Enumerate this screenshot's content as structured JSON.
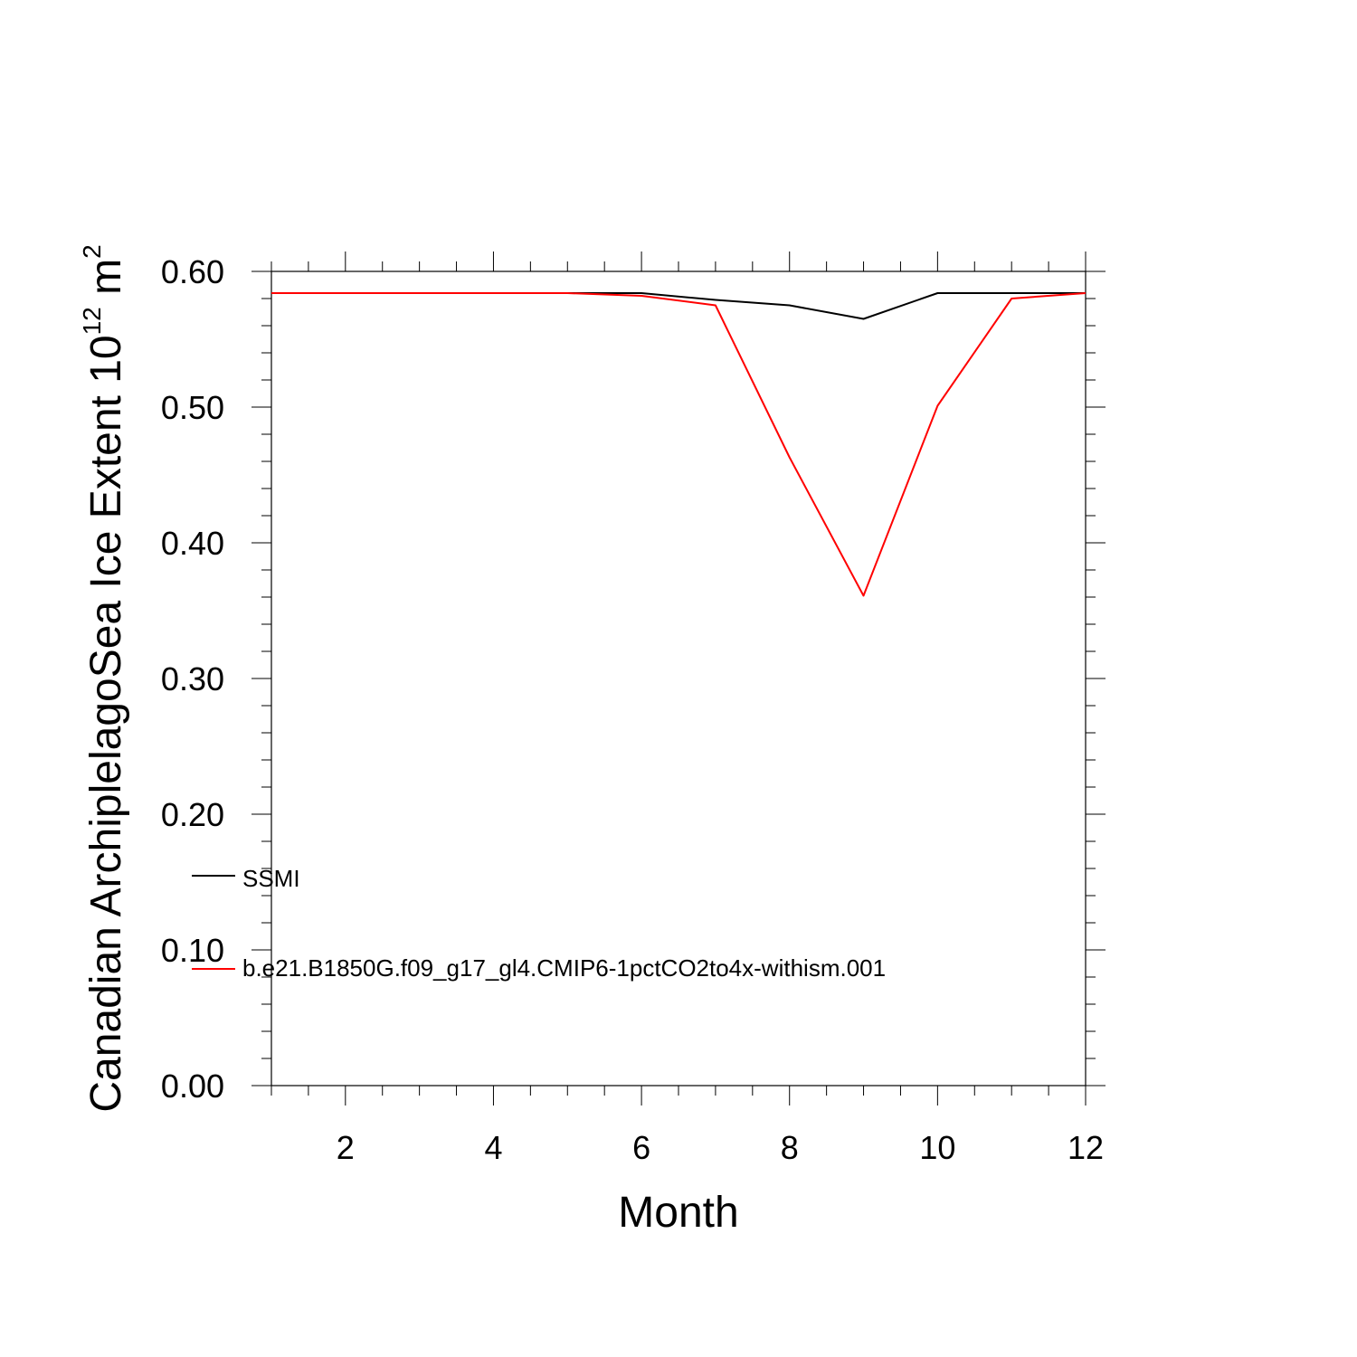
{
  "chart_data": {
    "type": "line",
    "title": "",
    "xlabel": "Month",
    "ylabel": "Canadian ArchiplelagoSea Ice Extent 10",
    "ylabel_exponent": "12",
    "ylabel_unit": "m",
    "ylabel_unit_exponent": "2",
    "xlim": [
      1,
      12
    ],
    "ylim": [
      0.0,
      0.6
    ],
    "x_ticks": [
      2,
      4,
      6,
      8,
      10,
      12
    ],
    "x_tick_labels": [
      "2",
      "4",
      "6",
      "8",
      "10",
      "12"
    ],
    "y_ticks": [
      0.0,
      0.1,
      0.2,
      0.3,
      0.4,
      0.5,
      0.6
    ],
    "y_tick_labels": [
      "0.00",
      "0.10",
      "0.20",
      "0.30",
      "0.40",
      "0.50",
      "0.60"
    ],
    "grid": false,
    "legend_position": "bottom-left",
    "x": [
      1,
      2,
      3,
      4,
      5,
      6,
      7,
      8,
      9,
      10,
      11,
      12
    ],
    "series": [
      {
        "name": "SSMI",
        "color": "#000000",
        "values": [
          0.584,
          0.584,
          0.584,
          0.584,
          0.584,
          0.584,
          0.579,
          0.575,
          0.565,
          0.584,
          0.584,
          0.584
        ]
      },
      {
        "name": "b.e21.B1850G.f09_g17_gl4.CMIP6-1pctCO2to4x-withism.001",
        "color": "#ff0000",
        "values": [
          0.584,
          0.584,
          0.584,
          0.584,
          0.584,
          0.582,
          0.575,
          0.463,
          0.361,
          0.501,
          0.58,
          0.584
        ]
      }
    ]
  }
}
